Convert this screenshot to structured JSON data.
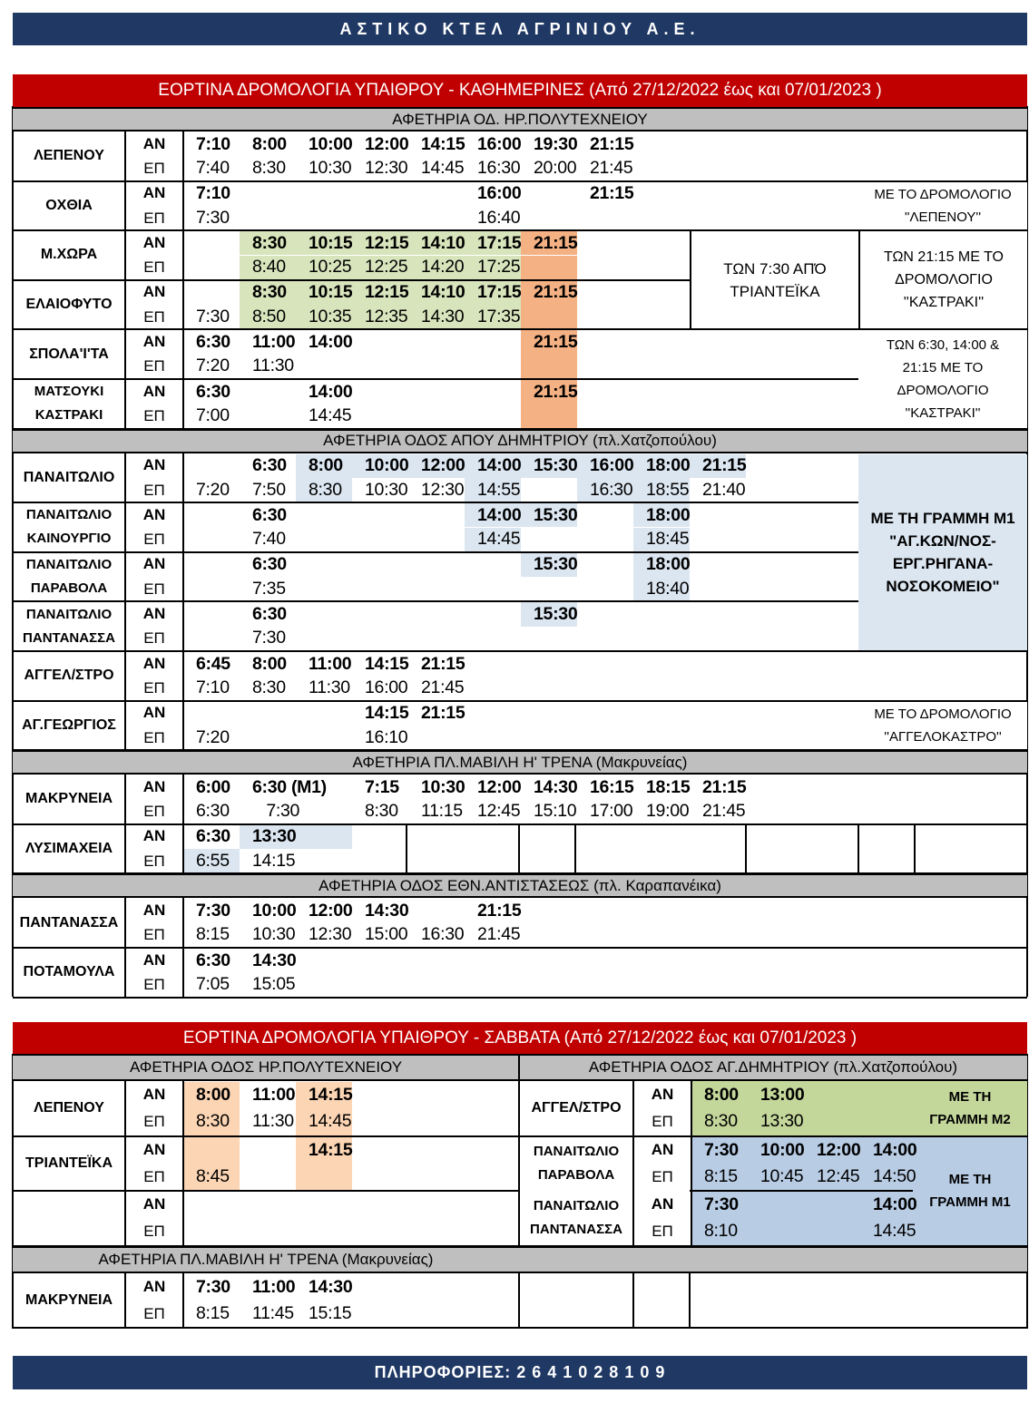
{
  "header": {
    "title": "ΑΣΤΙΚΟ ΚΤΕΛ ΑΓΡΙΝΙΟΥ Α.Ε."
  },
  "labels": {
    "an": "ΑΝ",
    "ep": "ΕΠ"
  },
  "colors": {
    "header_bar": "#1f3864",
    "title_bar": "#c00000",
    "section_gray": "#bfbfbf",
    "green": "#d8e4bc",
    "orange": "#f4b183",
    "blue": "#dce6f1"
  },
  "daily": {
    "title": "ΕΟΡΤΙΝΑ ΔΡΟΜΟΛΟΓΙΑ ΥΠΑΙΘΡΟΥ  - ΚΑΘΗΜΕΡΙΝΕΣ (Από 27/12/2022 έως και 07/01/2023 )",
    "sections": [
      {
        "header": "ΑΦΕΤΗΡΙΑ ΟΔ. ΗΡ.ΠΟΛΥΤΕΧΝΕΙΟΥ",
        "rows": [
          {
            "name": "ΛΕΠΕΝΟΥ",
            "an": [
              "7:10",
              "8:00",
              "10:00",
              "12:00",
              "14:15",
              "16:00",
              "19:30",
              "21:15"
            ],
            "ep": [
              "7:40",
              "8:30",
              "10:30",
              "12:30",
              "14:45",
              "16:30",
              "20:00",
              "21:45"
            ]
          },
          {
            "name": "ΟΧΘΙΑ",
            "an": [
              "7:10",
              "",
              "",
              "",
              "",
              "16:00",
              "",
              "21:15"
            ],
            "ep": [
              "7:30",
              "",
              "",
              "",
              "",
              "16:40"
            ]
          },
          {
            "name": "Μ.ΧΩΡΑ",
            "an": [
              "",
              "8:30",
              "10:15",
              "12:15",
              "14:10",
              "17:15",
              "21:15"
            ],
            "an_hl": [
              "",
              "g",
              "g",
              "g",
              "g",
              "g",
              "o"
            ],
            "ep": [
              "",
              "8:40",
              "10:25",
              "12:25",
              "14:20",
              "17:25",
              ""
            ],
            "ep_hl": [
              "",
              "g",
              "g",
              "g",
              "g",
              "g",
              "o"
            ]
          },
          {
            "name": "ΕΛΑΙΟΦΥΤΟ",
            "an": [
              "",
              "8:30",
              "10:15",
              "12:15",
              "14:10",
              "17:15",
              "21:15"
            ],
            "an_hl": [
              "",
              "g",
              "g",
              "g",
              "g",
              "g",
              "o"
            ],
            "ep": [
              "7:30",
              "8:50",
              "10:35",
              "12:35",
              "14:30",
              "17:35",
              ""
            ],
            "ep_hl": [
              "",
              "g",
              "g",
              "g",
              "g",
              "g",
              "o"
            ]
          },
          {
            "name": "ΣΠΟΛΑ'Ι'ΤΑ",
            "an": [
              "6:30",
              "11:00",
              "14:00",
              "",
              "",
              "",
              "21:15"
            ],
            "an_hl": [
              "",
              "",
              "",
              "",
              "",
              "",
              "o"
            ],
            "ep": [
              "7:20",
              "11:30",
              "",
              "",
              "",
              "",
              ""
            ],
            "ep_hl": [
              "",
              "",
              "",
              "",
              "",
              "",
              "o"
            ]
          },
          {
            "name": "ΜΑΤΣΟΥΚΙ\nΚΑΣΤΡΑΚΙ",
            "an": [
              "6:30",
              "",
              "14:00",
              "",
              "",
              "",
              "21:15"
            ],
            "an_hl": [
              "",
              "",
              "",
              "",
              "",
              "",
              "o"
            ],
            "ep": [
              "7:00",
              "",
              "14:45",
              "",
              "",
              "",
              ""
            ],
            "ep_hl": [
              "",
              "",
              "",
              "",
              "",
              "",
              "o"
            ]
          }
        ]
      },
      {
        "header": "ΑΦΕΤΗΡΙΑ ΟΔΟΣ ΑΠΟΥ ΔΗΜΗΤΡΙΟΥ (πλ.Χατζοπούλου)",
        "rows": [
          {
            "name": "ΠΑΝΑΙΤΩΛΙΟ",
            "an": [
              "",
              "6:30",
              "8:00",
              "10:00",
              "12:00",
              "14:00",
              "15:30",
              "16:00",
              "18:00",
              "21:15"
            ],
            "an_hl": [
              "",
              "",
              "b",
              "b",
              "b",
              "b",
              "b",
              "b",
              "b",
              "b"
            ],
            "ep": [
              "7:20",
              "7:50",
              "8:30",
              "10:30",
              "12:30",
              "14:55",
              "",
              "16:30",
              "18:55",
              "21:40"
            ],
            "ep_hl": [
              "",
              "",
              "b",
              "",
              "",
              "b",
              "",
              "b",
              "b",
              ""
            ]
          },
          {
            "name": "ΠΑΝΑΙΤΩΛΙΟ\nΚΑΙΝΟΥΡΓΙΟ",
            "an": [
              "",
              "6:30",
              "",
              "",
              "",
              "14:00",
              "15:30",
              "",
              "18:00"
            ],
            "an_hl": [
              "",
              "",
              "",
              "",
              "",
              "b",
              "b",
              "",
              "b"
            ],
            "ep": [
              "",
              "7:40",
              "",
              "",
              "",
              "14:45",
              "",
              "",
              "18:45"
            ],
            "ep_hl": [
              "",
              "",
              "",
              "",
              "",
              "b",
              "",
              "",
              "b"
            ]
          },
          {
            "name": "ΠΑΝΑΙΤΩΛΙΟ\nΠΑΡΑΒΟΛΑ",
            "an": [
              "",
              "6:30",
              "",
              "",
              "",
              "",
              "15:30",
              "",
              "18:00"
            ],
            "an_hl": [
              "",
              "",
              "",
              "",
              "",
              "",
              "b",
              "",
              "b"
            ],
            "ep": [
              "",
              "7:35",
              "",
              "",
              "",
              "",
              "",
              "",
              "18:40"
            ],
            "ep_hl": [
              "",
              "",
              "",
              "",
              "",
              "",
              "",
              "",
              "b"
            ]
          },
          {
            "name": "ΠΑΝΑΙΤΩΛΙΟ\nΠΑΝΤΑΝΑΣΣΑ",
            "an": [
              "",
              "6:30",
              "",
              "",
              "",
              "",
              "15:30"
            ],
            "an_hl": [
              "",
              "",
              "",
              "",
              "",
              "",
              "b"
            ],
            "ep": [
              "",
              "7:30"
            ]
          },
          {
            "name": "ΑΓΓΕΛ/ΣΤΡΟ",
            "an": [
              "6:45",
              "8:00",
              "11:00",
              "14:15",
              "21:15"
            ],
            "ep": [
              "7:10",
              "8:30",
              "11:30",
              "16:00",
              "21:45"
            ]
          },
          {
            "name": "ΑΓ.ΓΕΩΡΓΙΟΣ",
            "an": [
              "",
              "",
              "",
              "14:15",
              "21:15"
            ],
            "ep": [
              "7:20",
              "",
              "",
              "16:10"
            ]
          }
        ]
      },
      {
        "header": "ΑΦΕΤΗΡΙΑ ΠΛ.ΜΑΒΙΛΗ Η' ΤΡΕΝΑ (Μακρυνείας)",
        "rows": [
          {
            "name": "ΜΑΚΡΥΝΕΙΑ",
            "an": [
              "6:00",
              "6:30 (M1)",
              "",
              "7:15",
              "10:30",
              "12:00",
              "14:30",
              "16:15",
              "18:15",
              "21:15"
            ],
            "ep": [
              "6:30",
              "   7:30",
              "",
              "8:30",
              "11:15",
              "12:45",
              "15:10",
              "17:00",
              "19:00",
              "21:45"
            ]
          },
          {
            "name": "ΛΥΣΙΜΑΧΕΙΑ",
            "an": [
              "6:30",
              "13:30 (M1)",
              ""
            ],
            "an_hl": [
              "",
              "b",
              "b"
            ],
            "ep": [
              "6:55",
              "14:15"
            ],
            "ep_hl": [
              "b",
              ""
            ]
          }
        ]
      },
      {
        "header": "ΑΦΕΤΗΡΙΑ ΟΔΟΣ ΕΘΝ.ΑΝΤΙΣΤΑΣΕΩΣ (πλ. Καραπανέικα)",
        "rows": [
          {
            "name": "ΠΑΝΤΑΝΑΣΣΑ",
            "an": [
              "7:30",
              "10:00",
              "12:00",
              "14:30",
              "",
              "21:15"
            ],
            "ep": [
              "8:15",
              "10:30",
              "12:30",
              "15:00",
              "16:30",
              "21:45"
            ]
          },
          {
            "name": "ΠΟΤΑΜΟΥΛΑ",
            "an": [
              "6:30",
              "14:30"
            ],
            "ep": [
              "7:05",
              "15:05"
            ]
          }
        ]
      }
    ],
    "notes": [
      "ΜΕ ΤΟ ΔΡΟΜΟΛΟΓΙΟ\n''ΛΕΠΕΝΟΥ''",
      "ΤΩΝ 7:30 ΑΠΌ\nΤΡΙΑΝΤΕΪΚΑ",
      "ΤΩΝ 21:15 ΜΕ ΤΟ\nΔΡΟΜΟΛΟΓΙΟ\n''ΚΑΣΤΡΑΚΙ''",
      "ΤΩΝ 6:30, 14:00 &\n21:15 ΜΕ ΤΟ\nΔΡΟΜΟΛΟΓΙΟ\n''ΚΑΣΤΡΑΚΙ''",
      "ΜΕ ΤΗ ΓΡΑΜΜΗ Μ1\n\"ΑΓ.ΚΩΝ/ΝΟΣ-\nΕΡΓ.ΡΗΓΑΝΑ-\nΝΟΣΟΚΟΜΕΙΟ\"",
      "ΜΕ ΤΟ ΔΡΟΜΟΛΟΓΙΟ\n''ΑΓΓΕΛΟΚΑΣΤΡΟ''"
    ]
  },
  "saturday": {
    "title": "ΕΟΡΤΙΝΑ ΔΡΟΜΟΛΟΓΙΑ ΥΠΑΙΘΡΟΥ  - ΣΑΒΒΑΤΑ (Από 27/12/2022 έως και 07/01/2023 )",
    "left_header": "ΑΦΕΤΗΡΙΑ ΟΔΟΣ ΗΡ.ΠΟΛΥΤΕΧΝΕΙΟΥ",
    "right_header": "ΑΦΕΤΗΡΙΑ ΟΔΟΣ ΑΓ.ΔΗΜΗΤΡΙΟΥ (πλ.Χατζοπούλου)",
    "bottom_header": "ΑΦΕΤΗΡΙΑ ΠΛ.ΜΑΒΙΛΗ Η' ΤΡΕΝΑ (Μακρυνείας)",
    "left_rows": [
      {
        "name": "ΛΕΠΕΝΟΥ",
        "an": [
          "8:00",
          "11:00",
          "14:15"
        ],
        "an_hl": [
          "so",
          "",
          "so"
        ],
        "ep": [
          "8:30",
          "11:30",
          "14:45"
        ],
        "ep_hl": [
          "so",
          "",
          "so"
        ]
      },
      {
        "name": "ΤΡΙΑΝΤΕΪΚΑ",
        "an": [
          "",
          "",
          "14:15"
        ],
        "an_hl": [
          "so",
          "",
          "so"
        ],
        "ep": [
          "8:45",
          "",
          ""
        ],
        "ep_hl": [
          "so",
          "",
          "so"
        ]
      },
      {
        "name": "",
        "an": [],
        "ep": []
      }
    ],
    "bottom_rows": [
      {
        "name": "ΜΑΚΡΥΝΕΙΑ",
        "an": [
          "7:30",
          "11:00",
          "14:30"
        ],
        "ep": [
          "8:15",
          "11:45",
          "15:15"
        ]
      }
    ],
    "right_rows": [
      {
        "name": "ΑΓΓΕΛ/ΣΤΡΟ",
        "an": [
          "8:00",
          "13:00"
        ],
        "ep": [
          "8:30",
          "13:30"
        ]
      },
      {
        "name": "ΠΑΝΑΙΤΩΛΙΟ\nΠΑΡΑΒΟΛΑ",
        "an": [
          "7:30",
          "10:00",
          "12:00",
          "14:00"
        ],
        "ep": [
          "8:15",
          "10:45",
          "12:45",
          "14:50"
        ]
      },
      {
        "name": "ΠΑΝΑΙΤΩΛΙΟ\nΠΑΝΤΑΝΑΣΣΑ",
        "an": [
          "7:30",
          "",
          "",
          "14:00"
        ],
        "ep": [
          "8:10",
          "",
          "",
          "14:45"
        ]
      }
    ],
    "notes": [
      "ΜΕ ΤΗ\nΓΡΑΜΜΗ Μ2",
      "ΜΕ ΤΗ\nΓΡΑΜΜΗ Μ1"
    ]
  },
  "footer": {
    "info": "ΠΛΗΡΟΦΟΡΙΕΣ:  2 6 4 1 0 2 8 1 0 9"
  }
}
